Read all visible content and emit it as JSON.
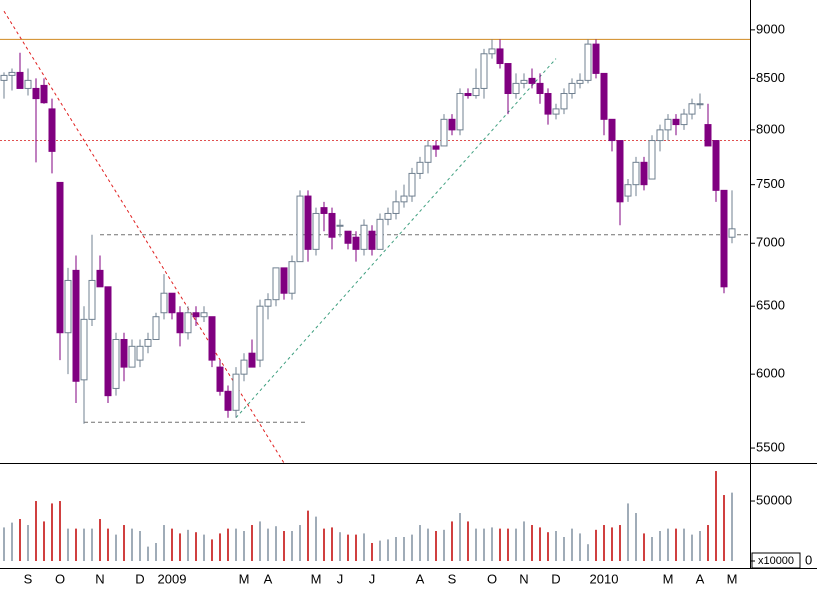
{
  "chart_data": {
    "type": "candlestick",
    "log_scale": true,
    "categories": [
      null,
      null,
      null,
      "S",
      null,
      null,
      null,
      "O",
      null,
      null,
      null,
      null,
      "N",
      null,
      null,
      null,
      null,
      "D",
      null,
      null,
      null,
      "2009",
      null,
      null,
      null,
      null,
      null,
      null,
      null,
      null,
      "M",
      null,
      null,
      "A",
      null,
      null,
      null,
      null,
      null,
      "M",
      null,
      null,
      "J",
      null,
      null,
      null,
      "J",
      null,
      null,
      null,
      null,
      null,
      "A",
      null,
      null,
      null,
      "S",
      null,
      null,
      null,
      null,
      "O",
      null,
      null,
      null,
      "N",
      null,
      null,
      null,
      "D",
      null,
      null,
      null,
      null,
      null,
      "2010",
      null,
      null,
      null,
      null,
      null,
      null,
      null,
      "M",
      null,
      null,
      null,
      "A",
      null,
      null,
      null,
      "M"
    ],
    "open": [
      8480,
      8530,
      8560,
      8400,
      8400,
      8430,
      8200,
      7520,
      6300,
      6780,
      5960,
      6400,
      6780,
      6650,
      5900,
      6250,
      6050,
      6100,
      6200,
      6250,
      6450,
      6600,
      6450,
      6300,
      6450,
      6420,
      6420,
      6050,
      5880,
      5750,
      6000,
      6150,
      6100,
      6500,
      6550,
      6800,
      6600,
      6850,
      7400,
      6950,
      7300,
      7250,
      7150,
      7100,
      7050,
      6950,
      7100,
      6950,
      7200,
      7250,
      7350,
      7400,
      7600,
      7700,
      7850,
      7850,
      8100,
      8000,
      8350,
      8330,
      8400,
      8750,
      8800,
      8650,
      8350,
      8450,
      8500,
      8450,
      8350,
      8150,
      8200,
      8350,
      8450,
      8480,
      8850,
      8550,
      8100,
      7900,
      7400,
      7500,
      7700,
      7550,
      7900,
      8000,
      8100,
      8050,
      8150,
      8250,
      8050,
      7900,
      7450,
      7050
    ],
    "high": [
      8560,
      8600,
      8760,
      8600,
      8500,
      8500,
      8300,
      7520,
      6800,
      6900,
      6500,
      7070,
      6900,
      6650,
      6300,
      6300,
      6250,
      6250,
      6300,
      6450,
      6750,
      6600,
      6500,
      6500,
      6500,
      6500,
      6420,
      6100,
      5920,
      6050,
      6150,
      6250,
      6550,
      6600,
      6800,
      6800,
      6900,
      7450,
      7450,
      7300,
      7350,
      7300,
      7200,
      7100,
      7100,
      7200,
      7150,
      7250,
      7300,
      7450,
      7500,
      7650,
      7750,
      7900,
      7900,
      8150,
      8150,
      8400,
      8400,
      8600,
      8800,
      8900,
      8900,
      8650,
      8550,
      8550,
      8600,
      8550,
      8400,
      8250,
      8400,
      8500,
      8550,
      8900,
      8900,
      8550,
      8100,
      7900,
      7550,
      7750,
      7750,
      7950,
      8050,
      8150,
      8150,
      8200,
      8300,
      8350,
      8250,
      7900,
      7450,
      7450
    ],
    "low": [
      8300,
      8380,
      8400,
      8330,
      7700,
      8250,
      7600,
      6100,
      6000,
      5800,
      5660,
      6350,
      6650,
      5800,
      5850,
      5950,
      6050,
      6050,
      6150,
      6250,
      6400,
      6400,
      6200,
      6250,
      6350,
      6380,
      6050,
      5850,
      5700,
      5700,
      5950,
      6050,
      6050,
      6400,
      6500,
      6550,
      6550,
      6850,
      6850,
      6900,
      7100,
      6950,
      7050,
      6950,
      6850,
      6900,
      6900,
      6950,
      7150,
      7200,
      7300,
      7350,
      7550,
      7600,
      7750,
      7850,
      7950,
      7950,
      8300,
      8300,
      8300,
      8700,
      8600,
      8150,
      8300,
      8400,
      8400,
      8250,
      8050,
      8100,
      8150,
      8300,
      8400,
      8450,
      8500,
      7950,
      7800,
      7150,
      7350,
      7400,
      7450,
      7550,
      7800,
      7900,
      7950,
      8000,
      8100,
      8200,
      7850,
      7350,
      6600,
      7000
    ],
    "close": [
      8530,
      8560,
      8400,
      8480,
      8300,
      8260,
      7800,
      6300,
      6700,
      5950,
      6400,
      6700,
      6650,
      5850,
      6250,
      6050,
      6200,
      6200,
      6250,
      6420,
      6600,
      6450,
      6300,
      6450,
      6420,
      6450,
      6100,
      5880,
      5750,
      6000,
      6100,
      6050,
      6500,
      6550,
      6800,
      6600,
      6850,
      7400,
      6950,
      7250,
      7250,
      7050,
      7150,
      7000,
      6950,
      7150,
      6950,
      7200,
      7250,
      7350,
      7400,
      7600,
      7700,
      7850,
      7820,
      8100,
      8000,
      8350,
      8330,
      8400,
      8750,
      8800,
      8650,
      8350,
      8450,
      8480,
      8450,
      8350,
      8150,
      8200,
      8350,
      8450,
      8480,
      8850,
      8550,
      8100,
      7900,
      7350,
      7500,
      7700,
      7500,
      7900,
      8000,
      8100,
      8050,
      8150,
      8250,
      8250,
      7850,
      7450,
      6650,
      7120
    ],
    "up_color": "#ffffff",
    "down_color": "#800080",
    "wick_color": "#708090",
    "ylim": [
      5404,
      9322
    ],
    "yticks": [
      5500,
      6000,
      6500,
      7000,
      7500,
      8000,
      8500,
      9000
    ],
    "levels": [
      {
        "value": 8900,
        "color": "#d08a20",
        "style": "solid"
      },
      {
        "value": 7900,
        "color": "#e05050",
        "style": "dotted"
      },
      {
        "value": 7070,
        "color": "#707070",
        "style": "dashed",
        "from": 12
      },
      {
        "value": 5670,
        "color": "#707070",
        "style": "dashed",
        "from": 10,
        "to": 38
      }
    ],
    "trendlines": [
      {
        "from": [
          0,
          9200
        ],
        "to": [
          35,
          5404
        ],
        "color": "#e02020"
      },
      {
        "from": [
          29,
          5700
        ],
        "to": [
          69,
          8700
        ],
        "color": "#40a080"
      }
    ],
    "volume": {
      "values": [
        28000,
        32000,
        35000,
        30000,
        50000,
        33000,
        48000,
        50000,
        27000,
        27000,
        27000,
        27000,
        35000,
        27000,
        22000,
        30000,
        27000,
        25000,
        12000,
        15000,
        30000,
        27000,
        23000,
        26000,
        24000,
        22000,
        18000,
        23000,
        27000,
        27000,
        25000,
        30000,
        33000,
        27000,
        29000,
        25000,
        25000,
        30000,
        42000,
        37000,
        27000,
        28000,
        24000,
        22000,
        22000,
        23000,
        15000,
        17000,
        18000,
        20000,
        20000,
        22000,
        30000,
        27000,
        25000,
        26000,
        33000,
        40000,
        33000,
        27000,
        27000,
        28000,
        27000,
        27000,
        27000,
        33000,
        30000,
        28000,
        24000,
        25000,
        20000,
        27000,
        23000,
        14000,
        26000,
        30000,
        28000,
        30000,
        48000,
        40000,
        23000,
        20000,
        25000,
        27000,
        27000,
        27000,
        22000,
        25000,
        30000,
        75000,
        55000,
        57000
      ],
      "ylim": [
        0,
        81700
      ],
      "yticks": [
        0,
        50000
      ],
      "unit_label": "x10000",
      "down_color": "#c00000",
      "up_color": "#8090a0"
    }
  }
}
